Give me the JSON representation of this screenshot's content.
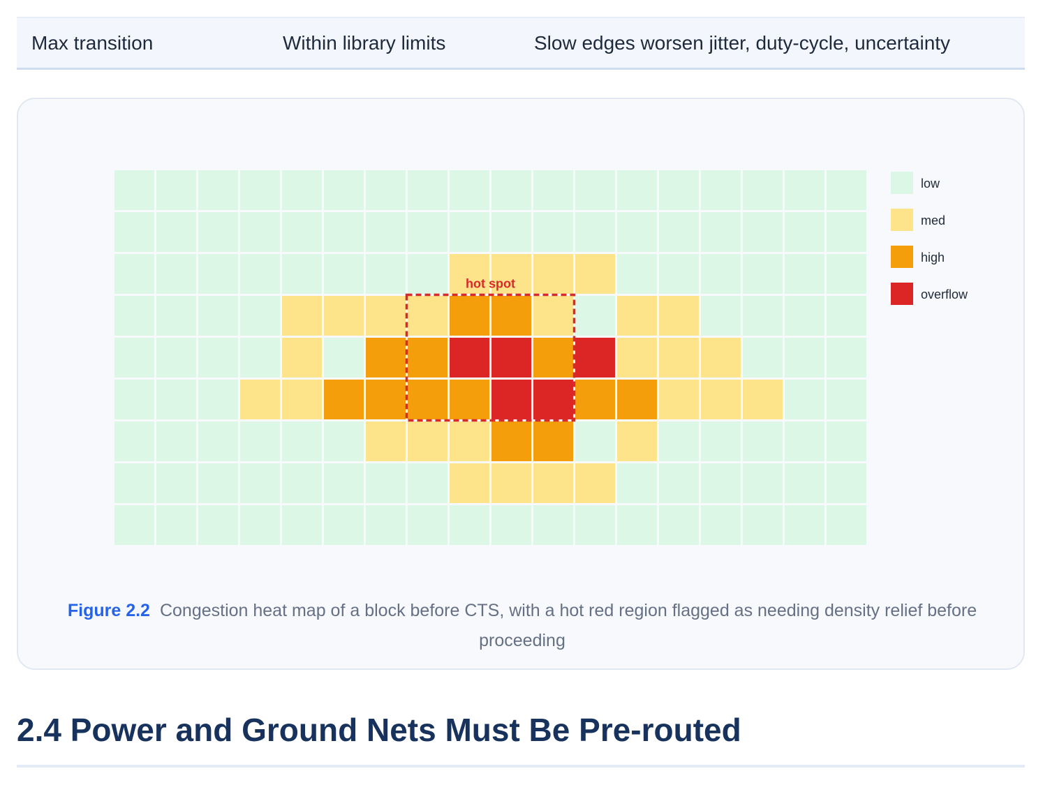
{
  "table_row": {
    "parameter": "Max transition",
    "target": "Within library limits",
    "impact": "Slow edges worsen jitter, duty-cycle, uncertainty"
  },
  "figure": {
    "label": "Figure 2.2",
    "caption": "Congestion heat map of a block before CTS, with a hot red region flagged as needing density relief before proceeding"
  },
  "chart_data": {
    "type": "heatmap",
    "rows": 9,
    "cols": 18,
    "levels": [
      "low",
      "med",
      "high",
      "overflow"
    ],
    "colors": {
      "low": "#dcf7e5",
      "med": "#fde38a",
      "high": "#f59e0b",
      "overflow": "#dc2626",
      "hotspot_border": "#d72a2a"
    },
    "grid": [
      [
        0,
        0,
        0,
        0,
        0,
        0,
        0,
        0,
        0,
        0,
        0,
        0,
        0,
        0,
        0,
        0,
        0,
        0
      ],
      [
        0,
        0,
        0,
        0,
        0,
        0,
        0,
        0,
        0,
        0,
        0,
        0,
        0,
        0,
        0,
        0,
        0,
        0
      ],
      [
        0,
        0,
        0,
        0,
        0,
        0,
        0,
        0,
        1,
        1,
        1,
        1,
        0,
        0,
        0,
        0,
        0,
        0
      ],
      [
        0,
        0,
        0,
        0,
        1,
        1,
        1,
        1,
        2,
        2,
        1,
        0,
        1,
        1,
        0,
        0,
        0,
        0
      ],
      [
        0,
        0,
        0,
        0,
        1,
        0,
        2,
        2,
        3,
        3,
        2,
        3,
        1,
        1,
        1,
        0,
        0,
        0
      ],
      [
        0,
        0,
        0,
        1,
        1,
        2,
        2,
        2,
        2,
        3,
        3,
        2,
        2,
        1,
        1,
        1,
        0,
        0
      ],
      [
        0,
        0,
        0,
        0,
        0,
        0,
        1,
        1,
        1,
        2,
        2,
        0,
        1,
        0,
        0,
        0,
        0,
        0
      ],
      [
        0,
        0,
        0,
        0,
        0,
        0,
        0,
        0,
        1,
        1,
        1,
        1,
        0,
        0,
        0,
        0,
        0,
        0
      ],
      [
        0,
        0,
        0,
        0,
        0,
        0,
        0,
        0,
        0,
        0,
        0,
        0,
        0,
        0,
        0,
        0,
        0,
        0
      ]
    ],
    "annotation": {
      "text": "hot spot",
      "row_start": 3,
      "row_end": 5,
      "col_start": 7,
      "col_end": 10
    },
    "legend_position": "right"
  },
  "section": {
    "heading": "2.4 Power and Ground Nets Must Be Pre-routed"
  }
}
